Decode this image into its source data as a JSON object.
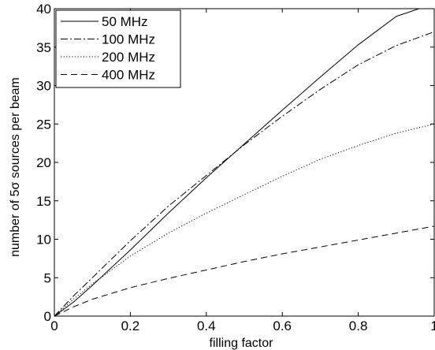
{
  "chart_data": {
    "type": "line",
    "title": "",
    "xlabel": "filling factor",
    "ylabel": "number of 5σ sources per beam",
    "xlim": [
      0,
      1
    ],
    "ylim": [
      0,
      40
    ],
    "xticks": [
      "0",
      "0.2",
      "0.4",
      "0.6",
      "0.8",
      "1"
    ],
    "yticks": [
      "0",
      "5",
      "10",
      "15",
      "20",
      "25",
      "30",
      "35",
      "40"
    ],
    "xtick_values": [
      0,
      0.2,
      0.4,
      0.6,
      0.8,
      1
    ],
    "ytick_values": [
      0,
      5,
      10,
      15,
      20,
      25,
      30,
      35,
      40
    ],
    "grid": false,
    "legend_position": "top-left",
    "series": [
      {
        "name": "50 MHz",
        "style": "solid",
        "x": [
          0,
          0.05,
          0.1,
          0.2,
          0.3,
          0.4,
          0.5,
          0.6,
          0.7,
          0.8,
          0.9,
          0.96
        ],
        "y": [
          0,
          1.8,
          4.0,
          8.6,
          13.4,
          18.0,
          22.4,
          26.8,
          31.1,
          35.3,
          39.0,
          40.0
        ]
      },
      {
        "name": "100 MHz",
        "style": "dashdot",
        "x": [
          0,
          0.05,
          0.1,
          0.2,
          0.3,
          0.4,
          0.5,
          0.6,
          0.7,
          0.8,
          0.9,
          1.0
        ],
        "y": [
          0,
          2.6,
          5.0,
          9.8,
          14.3,
          18.3,
          22.3,
          26.0,
          29.5,
          32.7,
          35.2,
          37.0
        ]
      },
      {
        "name": "200 MHz",
        "style": "dotted",
        "x": [
          0,
          0.05,
          0.1,
          0.2,
          0.3,
          0.4,
          0.5,
          0.6,
          0.7,
          0.8,
          0.9,
          1.0
        ],
        "y": [
          0,
          2.2,
          4.2,
          7.8,
          10.8,
          13.4,
          15.8,
          18.2,
          20.4,
          22.2,
          23.8,
          25.0
        ]
      },
      {
        "name": "400 MHz",
        "style": "dashed",
        "x": [
          0,
          0.05,
          0.1,
          0.2,
          0.3,
          0.4,
          0.5,
          0.6,
          0.7,
          0.8,
          0.9,
          1.0
        ],
        "y": [
          0,
          1.2,
          2.2,
          3.7,
          4.9,
          6.0,
          7.1,
          8.1,
          9.0,
          9.9,
          10.8,
          11.7
        ]
      }
    ]
  }
}
